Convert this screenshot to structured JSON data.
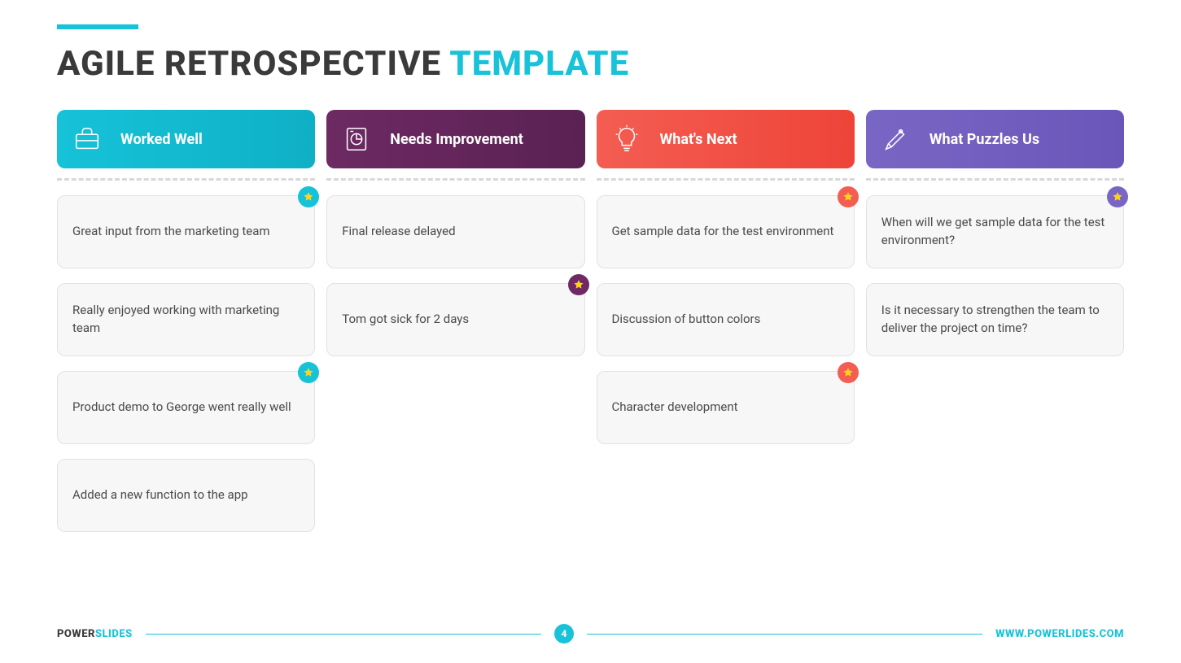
{
  "accent_color": "#18c3d9",
  "title_main": "AGILE RETROSPECTIVE ",
  "title_highlight": "TEMPLATE",
  "columns": [
    {
      "label": "Worked Well",
      "bg": "linear-gradient(90deg,#16c2d8,#0fb0c6)",
      "star_color": "#16c2d8",
      "cards": [
        {
          "text": "Great input from the marketing team",
          "starred": true
        },
        {
          "text": "Really enjoyed working with marketing team",
          "starred": false
        },
        {
          "text": "Product demo to George went really well",
          "starred": true
        },
        {
          "text": "Added a new function to the app",
          "starred": false
        }
      ]
    },
    {
      "label": "Needs Improvement",
      "bg": "linear-gradient(90deg,#6d2a63,#5a2153)",
      "star_color": "#6d2a63",
      "cards": [
        {
          "text": "Final release delayed",
          "starred": false
        },
        {
          "text": "Tom got sick for 2 days",
          "starred": true
        }
      ]
    },
    {
      "label": "What's Next",
      "bg": "linear-gradient(90deg,#f45d52,#ee4438)",
      "star_color": "#f45d52",
      "cards": [
        {
          "text": "Get sample data for the test environment",
          "starred": true
        },
        {
          "text": "Discussion of button colors",
          "starred": false
        },
        {
          "text": "Character development",
          "starred": true
        }
      ]
    },
    {
      "label": "What Puzzles Us",
      "bg": "linear-gradient(90deg,#7966c4,#6a56b8)",
      "star_color": "#7966c4",
      "cards": [
        {
          "text": "When will we get sample data for the test environment?",
          "starred": true
        },
        {
          "text": "Is it necessary to strengthen the team to deliver the project on time?",
          "starred": false
        }
      ]
    }
  ],
  "star_fill": "#ffd21e",
  "footer": {
    "brand_a": "POWER",
    "brand_b": "SLIDES",
    "page": "4",
    "url": "WWW.POWERLIDES.COM"
  }
}
